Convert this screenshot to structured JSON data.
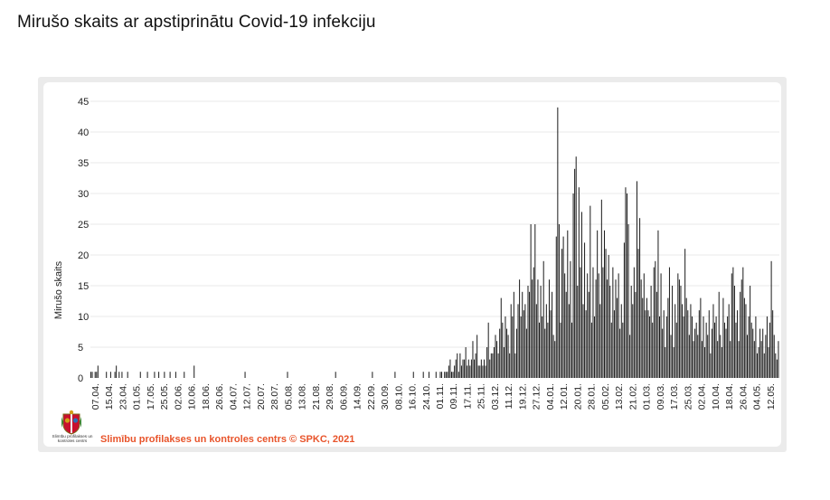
{
  "page": {
    "title": "Mirušo skaits ar apstiprinātu Covid-19 infekciju"
  },
  "footer": {
    "logo_caption": "Slimību profilakses un kontroles centrs",
    "credit": "Slimību profilakses un kontroles centrs © SPKC, 2021"
  },
  "colors": {
    "bar": "#1a1a1a",
    "grid": "#e9e9e9",
    "credit": "#e8542b"
  },
  "chart_data": {
    "type": "bar",
    "title": "",
    "xlabel": "",
    "ylabel": "Mirušo skaits",
    "ylim": [
      0,
      45
    ],
    "yticks": [
      0,
      5,
      10,
      15,
      20,
      25,
      30,
      35,
      40,
      45
    ],
    "grid": true,
    "start_date": "2020-04-05",
    "x_ticks": [
      "07.04.",
      "15.04.",
      "23.04.",
      "01.05.",
      "17.05.",
      "25.05.",
      "02.06.",
      "10.06.",
      "18.06.",
      "26.06.",
      "04.07.",
      "12.07.",
      "20.07.",
      "28.07.",
      "05.08.",
      "13.08.",
      "21.08.",
      "29.08.",
      "06.09.",
      "14.09.",
      "22.09.",
      "30.09.",
      "08.10.",
      "16.10.",
      "24.10.",
      "01.11.",
      "09.11.",
      "17.11.",
      "25.11.",
      "03.12.",
      "11.12.",
      "19.12.",
      "27.12.",
      "04.01.",
      "12.01.",
      "20.01.",
      "28.01.",
      "05.02.",
      "13.02.",
      "21.02.",
      "01.03.",
      "09.03.",
      "17.03.",
      "25.03.",
      "02.04.",
      "10.04.",
      "18.04.",
      "26.04.",
      "04.05.",
      "12.05."
    ],
    "values": [
      1,
      1,
      0,
      1,
      1,
      2,
      0,
      0,
      0,
      0,
      0,
      1,
      0,
      0,
      1,
      0,
      0,
      1,
      2,
      0,
      1,
      0,
      1,
      0,
      0,
      0,
      1,
      0,
      0,
      0,
      0,
      0,
      0,
      0,
      0,
      1,
      0,
      0,
      0,
      0,
      1,
      0,
      0,
      0,
      0,
      1,
      0,
      0,
      1,
      0,
      0,
      0,
      1,
      0,
      0,
      0,
      1,
      0,
      0,
      0,
      1,
      0,
      0,
      0,
      0,
      0,
      1,
      0,
      0,
      0,
      0,
      0,
      0,
      2,
      0,
      0,
      0,
      0,
      0,
      0,
      0,
      0,
      0,
      0,
      0,
      0,
      0,
      0,
      0,
      0,
      0,
      0,
      0,
      0,
      0,
      0,
      0,
      0,
      0,
      0,
      0,
      0,
      0,
      0,
      0,
      0,
      0,
      0,
      0,
      1,
      0,
      0,
      0,
      0,
      0,
      0,
      0,
      0,
      0,
      0,
      0,
      0,
      0,
      0,
      0,
      0,
      0,
      0,
      0,
      0,
      0,
      0,
      0,
      0,
      0,
      0,
      0,
      0,
      0,
      1,
      0,
      0,
      0,
      0,
      0,
      0,
      0,
      0,
      0,
      0,
      0,
      0,
      0,
      0,
      0,
      0,
      0,
      0,
      0,
      0,
      0,
      0,
      0,
      0,
      0,
      0,
      0,
      0,
      0,
      0,
      0,
      0,
      0,
      1,
      0,
      0,
      0,
      0,
      0,
      0,
      0,
      0,
      0,
      0,
      0,
      0,
      0,
      0,
      0,
      0,
      0,
      0,
      0,
      0,
      0,
      0,
      0,
      0,
      0,
      1,
      0,
      0,
      0,
      0,
      0,
      0,
      0,
      0,
      0,
      0,
      0,
      0,
      0,
      0,
      0,
      1,
      0,
      0,
      0,
      0,
      0,
      0,
      0,
      0,
      0,
      0,
      0,
      0,
      1,
      0,
      0,
      0,
      0,
      0,
      0,
      1,
      0,
      0,
      0,
      1,
      0,
      0,
      0,
      0,
      1,
      0,
      0,
      1,
      1,
      0,
      1,
      1,
      1,
      2,
      3,
      1,
      1,
      2,
      3,
      4,
      1,
      4,
      2,
      3,
      3,
      5,
      2,
      3,
      2,
      3,
      6,
      3,
      4,
      7,
      2,
      2,
      3,
      2,
      3,
      2,
      5,
      9,
      3,
      4,
      4,
      5,
      7,
      6,
      4,
      8,
      13,
      9,
      5,
      10,
      8,
      7,
      4,
      12,
      10,
      14,
      4,
      8,
      12,
      16,
      10,
      14,
      11,
      12,
      8,
      15,
      14,
      25,
      16,
      18,
      25,
      12,
      16,
      9,
      15,
      10,
      19,
      8,
      12,
      9,
      16,
      11,
      14,
      7,
      6,
      23,
      44,
      25,
      9,
      21,
      23,
      17,
      14,
      24,
      12,
      19,
      9,
      30,
      34,
      36,
      15,
      31,
      18,
      27,
      12,
      22,
      11,
      17,
      14,
      28,
      9,
      18,
      10,
      16,
      24,
      17,
      12,
      29,
      18,
      24,
      21,
      16,
      20,
      15,
      9,
      18,
      11,
      16,
      13,
      17,
      8,
      12,
      9,
      22,
      31,
      30,
      25,
      7,
      15,
      12,
      18,
      14,
      32,
      21,
      26,
      16,
      13,
      17,
      11,
      13,
      11,
      10,
      15,
      9,
      18,
      19,
      14,
      24,
      10,
      17,
      8,
      11,
      5,
      10,
      13,
      18,
      7,
      15,
      5,
      12,
      9,
      17,
      16,
      15,
      12,
      10,
      21,
      13,
      11,
      7,
      12,
      10,
      6,
      8,
      9,
      7,
      11,
      13,
      6,
      10,
      5,
      9,
      7,
      11,
      4,
      8,
      12,
      9,
      10,
      6,
      14,
      7,
      5,
      13,
      9,
      8,
      10,
      12,
      6,
      17,
      18,
      15,
      9,
      11,
      6,
      14,
      16,
      18,
      13,
      12,
      7,
      10,
      15,
      9,
      8,
      6,
      10,
      4,
      5,
      8,
      6,
      8,
      4,
      7,
      10,
      5,
      9,
      19,
      11,
      7,
      4,
      3,
      6
    ]
  }
}
